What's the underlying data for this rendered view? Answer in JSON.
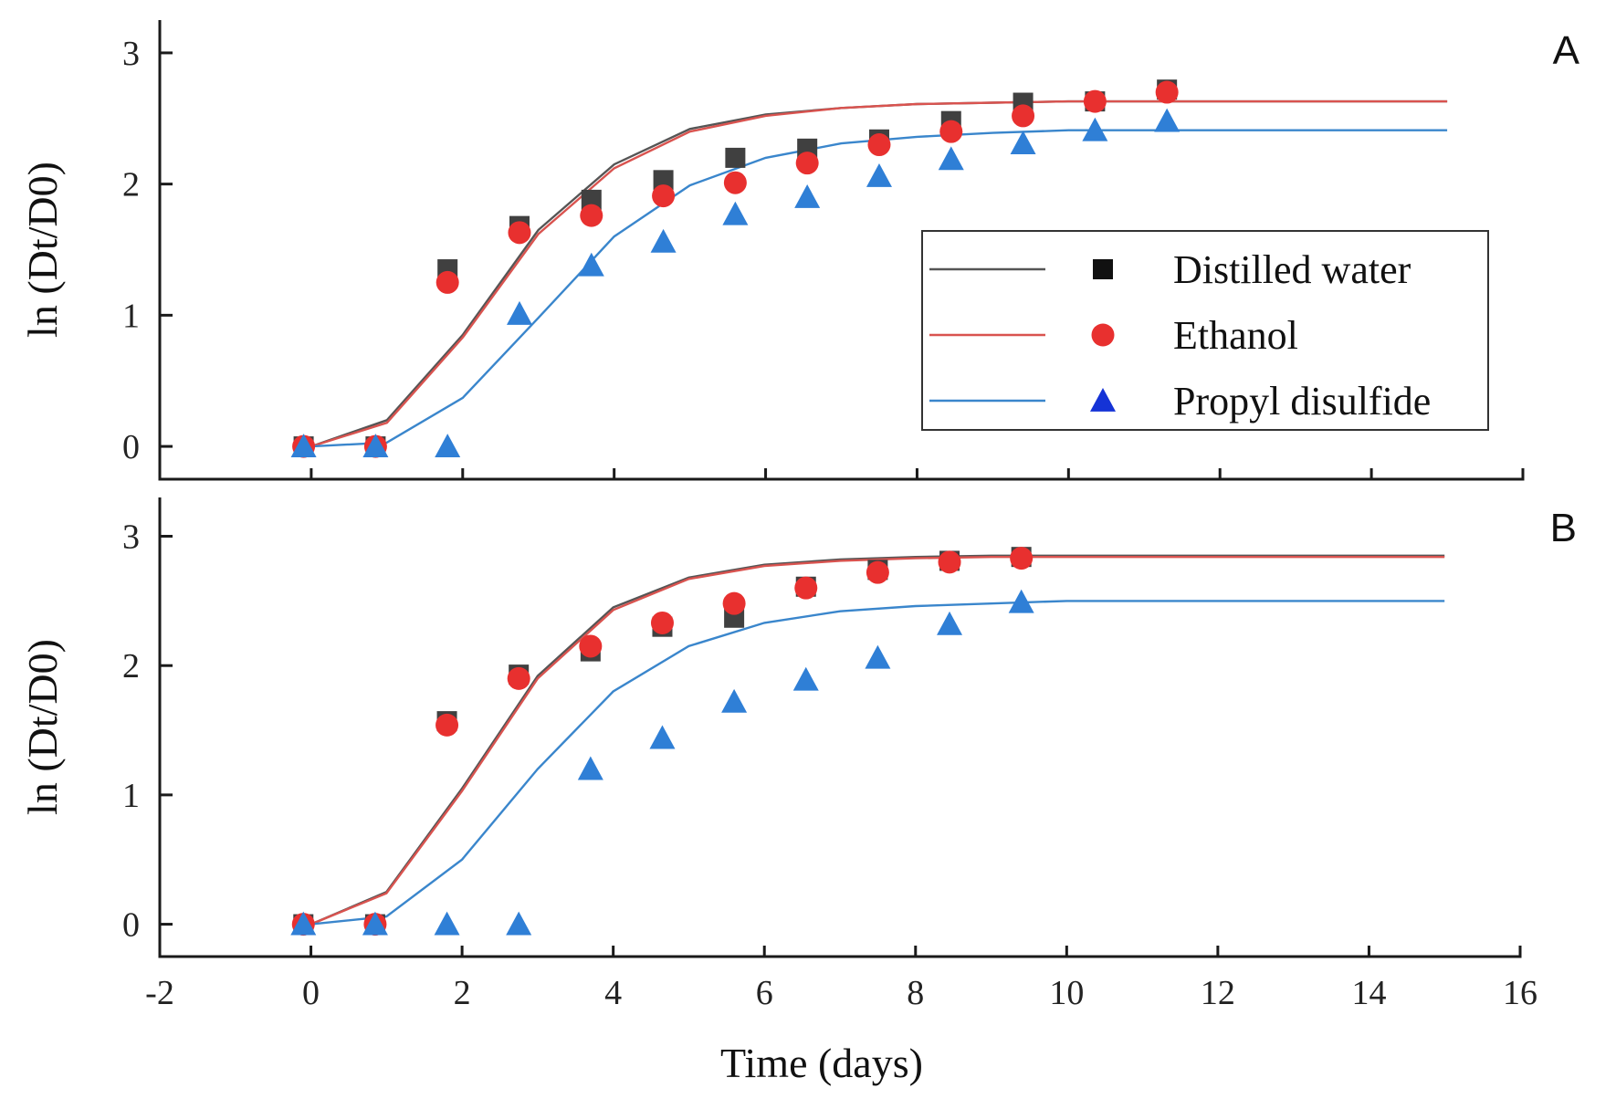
{
  "colors": {
    "distilled_water_line": "#555555",
    "distilled_water_marker": "#404040",
    "ethanol_line": "#d9534f",
    "ethanol_marker": "#e8302f",
    "propyl_line": "#3a86cc",
    "propyl_marker": "#2f7fd6",
    "axis": "#1a1a1a"
  },
  "legend": {
    "items": [
      {
        "label": "Distilled water",
        "series": "distilled_water"
      },
      {
        "label": "Ethanol",
        "series": "ethanol"
      },
      {
        "label": "Propyl disulfide",
        "series": "propyl"
      }
    ]
  },
  "chart_data": [
    {
      "type": "scatter",
      "panel_label": "A",
      "xlabel": "Time (days)",
      "ylabel": "ln (Dt/D0)",
      "xlim": [
        -2,
        16
      ],
      "ylim": [
        -0.25,
        3.25
      ],
      "x_ticks": [
        "-2",
        "0",
        "2",
        "4",
        "6",
        "8",
        "10",
        "12",
        "14",
        "16"
      ],
      "y_ticks": [
        "0",
        "1",
        "2",
        "3"
      ],
      "legend_position": "center-right",
      "series": [
        {
          "name": "Distilled water",
          "key": "distilled_water",
          "marker": "square",
          "points": {
            "x": [
              -0.1,
              0.85,
              1.8,
              2.75,
              3.7,
              4.65,
              5.6,
              6.55,
              7.5,
              8.45,
              9.4,
              10.35,
              11.3
            ],
            "y": [
              0.0,
              0.0,
              1.35,
              1.68,
              1.88,
              2.03,
              2.2,
              2.27,
              2.34,
              2.48,
              2.62,
              2.63,
              2.72
            ]
          },
          "fit": {
            "x": [
              0,
              1,
              2,
              3,
              4,
              5,
              6,
              7,
              8,
              9,
              10,
              11,
              12,
              13,
              14,
              15
            ],
            "y": [
              0.0,
              0.2,
              0.85,
              1.65,
              2.15,
              2.42,
              2.53,
              2.58,
              2.61,
              2.62,
              2.63,
              2.63,
              2.63,
              2.63,
              2.63,
              2.63
            ]
          }
        },
        {
          "name": "Ethanol",
          "key": "ethanol",
          "marker": "circle",
          "points": {
            "x": [
              -0.1,
              0.85,
              1.8,
              2.75,
              3.7,
              4.65,
              5.6,
              6.55,
              7.5,
              8.45,
              9.4,
              10.35,
              11.3
            ],
            "y": [
              0.0,
              0.0,
              1.25,
              1.63,
              1.76,
              1.91,
              2.01,
              2.16,
              2.3,
              2.4,
              2.52,
              2.63,
              2.7
            ]
          },
          "fit": {
            "x": [
              0,
              1,
              2,
              3,
              4,
              5,
              6,
              7,
              8,
              9,
              10,
              11,
              12,
              13,
              14,
              15
            ],
            "y": [
              0.0,
              0.18,
              0.83,
              1.62,
              2.12,
              2.4,
              2.52,
              2.58,
              2.61,
              2.62,
              2.63,
              2.63,
              2.63,
              2.63,
              2.63,
              2.63
            ]
          }
        },
        {
          "name": "Propyl disulfide",
          "key": "propyl",
          "marker": "triangle",
          "points": {
            "x": [
              -0.1,
              0.85,
              1.8,
              2.75,
              3.7,
              4.65,
              5.6,
              6.55,
              7.5,
              8.45,
              9.4,
              10.35,
              11.3
            ],
            "y": [
              0.0,
              0.0,
              0.0,
              1.01,
              1.38,
              1.56,
              1.77,
              1.9,
              2.06,
              2.19,
              2.31,
              2.41,
              2.48
            ]
          },
          "fit": {
            "x": [
              0,
              1,
              2,
              3,
              4,
              5,
              6,
              7,
              8,
              9,
              10,
              11,
              12,
              13,
              14,
              15
            ],
            "y": [
              0.0,
              0.03,
              0.37,
              0.98,
              1.6,
              1.99,
              2.2,
              2.31,
              2.36,
              2.39,
              2.41,
              2.41,
              2.41,
              2.41,
              2.41,
              2.41
            ]
          }
        }
      ]
    },
    {
      "type": "scatter",
      "panel_label": "B",
      "xlabel": "Time (days)",
      "ylabel": "ln (Dt/D0)",
      "xlim": [
        -2,
        16
      ],
      "ylim": [
        -0.25,
        3.3
      ],
      "x_ticks": [
        "-2",
        "0",
        "2",
        "4",
        "6",
        "8",
        "10",
        "12",
        "14",
        "16"
      ],
      "y_ticks": [
        "0",
        "1",
        "2",
        "3"
      ],
      "series": [
        {
          "name": "Distilled water",
          "key": "distilled_water",
          "marker": "square",
          "points": {
            "x": [
              -0.1,
              0.85,
              1.8,
              2.75,
              3.7,
              4.65,
              5.6,
              6.55,
              7.5,
              8.45,
              9.4
            ],
            "y": [
              0.0,
              0.0,
              1.57,
              1.93,
              2.11,
              2.3,
              2.37,
              2.61,
              2.74,
              2.81,
              2.84
            ]
          },
          "fit": {
            "x": [
              0,
              1,
              2,
              3,
              4,
              5,
              6,
              7,
              8,
              9,
              10,
              11,
              12,
              13,
              14,
              15
            ],
            "y": [
              0.0,
              0.25,
              1.05,
              1.92,
              2.45,
              2.68,
              2.78,
              2.82,
              2.84,
              2.85,
              2.85,
              2.85,
              2.85,
              2.85,
              2.85,
              2.85
            ]
          }
        },
        {
          "name": "Ethanol",
          "key": "ethanol",
          "marker": "circle",
          "points": {
            "x": [
              -0.1,
              0.85,
              1.8,
              2.75,
              3.7,
              4.65,
              5.6,
              6.55,
              7.5,
              8.45,
              9.4
            ],
            "y": [
              0.0,
              0.0,
              1.54,
              1.9,
              2.15,
              2.33,
              2.48,
              2.6,
              2.72,
              2.8,
              2.83
            ]
          },
          "fit": {
            "x": [
              0,
              1,
              2,
              3,
              4,
              5,
              6,
              7,
              8,
              9,
              10,
              11,
              12,
              13,
              14,
              15
            ],
            "y": [
              0.0,
              0.24,
              1.03,
              1.9,
              2.43,
              2.67,
              2.77,
              2.81,
              2.83,
              2.84,
              2.84,
              2.84,
              2.84,
              2.84,
              2.84,
              2.84
            ]
          }
        },
        {
          "name": "Propyl disulfide",
          "key": "propyl",
          "marker": "triangle",
          "points": {
            "x": [
              -0.1,
              0.85,
              1.8,
              2.75,
              3.7,
              4.65,
              5.6,
              6.55,
              7.5,
              8.45,
              9.4
            ],
            "y": [
              0.0,
              0.0,
              0.0,
              0.0,
              1.2,
              1.44,
              1.72,
              1.89,
              2.06,
              2.32,
              2.49
            ]
          },
          "fit": {
            "x": [
              0,
              1,
              2,
              3,
              4,
              5,
              6,
              7,
              8,
              9,
              10,
              11,
              12,
              13,
              14,
              15
            ],
            "y": [
              0.0,
              0.06,
              0.5,
              1.2,
              1.8,
              2.15,
              2.33,
              2.42,
              2.46,
              2.48,
              2.5,
              2.5,
              2.5,
              2.5,
              2.5,
              2.5
            ]
          }
        }
      ]
    }
  ]
}
